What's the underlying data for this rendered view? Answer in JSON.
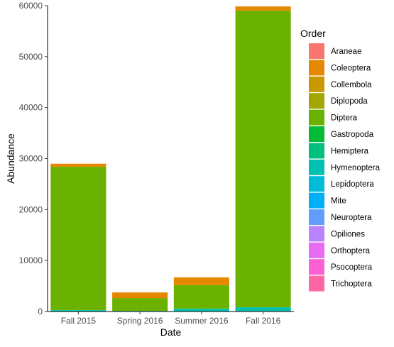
{
  "chart_data": {
    "type": "bar",
    "stacked": true,
    "xlabel": "Date",
    "ylabel": "Abundance",
    "categories": [
      "Fall 2015",
      "Spring 2016",
      "Summer 2016",
      "Fall 2016"
    ],
    "ylim": [
      0,
      60000
    ],
    "yticks": [
      0,
      10000,
      20000,
      30000,
      40000,
      50000,
      60000
    ],
    "grid": false,
    "legend": {
      "title": "Order",
      "position": "right"
    },
    "series": [
      {
        "name": "Araneae",
        "color": "#F8766D",
        "values": [
          10,
          10,
          10,
          20
        ]
      },
      {
        "name": "Coleoptera",
        "color": "#E58700",
        "values": [
          600,
          1100,
          1500,
          800
        ]
      },
      {
        "name": "Collembola",
        "color": "#C99800",
        "values": [
          5,
          5,
          5,
          5
        ]
      },
      {
        "name": "Diplopoda",
        "color": "#A3A500",
        "values": [
          2,
          2,
          2,
          2
        ]
      },
      {
        "name": "Diptera",
        "color": "#6BB100",
        "values": [
          28100,
          2500,
          4600,
          58200
        ]
      },
      {
        "name": "Gastropoda",
        "color": "#00BA38",
        "values": [
          2,
          2,
          2,
          2
        ]
      },
      {
        "name": "Hemiptera",
        "color": "#00BF7D",
        "values": [
          30,
          20,
          30,
          50
        ]
      },
      {
        "name": "Hymenoptera",
        "color": "#00C0AF",
        "values": [
          200,
          80,
          500,
          700
        ]
      },
      {
        "name": "Lepidoptera",
        "color": "#00BCD8",
        "values": [
          30,
          10,
          30,
          60
        ]
      },
      {
        "name": "Mite",
        "color": "#00B0F6",
        "values": [
          10,
          5,
          5,
          10
        ]
      },
      {
        "name": "Neuroptera",
        "color": "#619CFF",
        "values": [
          2,
          2,
          2,
          2
        ]
      },
      {
        "name": "Opiliones",
        "color": "#B983FF",
        "values": [
          2,
          2,
          2,
          2
        ]
      },
      {
        "name": "Orthoptera",
        "color": "#E76BF3",
        "values": [
          5,
          5,
          5,
          5
        ]
      },
      {
        "name": "Psocoptera",
        "color": "#FD61D1",
        "values": [
          2,
          2,
          2,
          2
        ]
      },
      {
        "name": "Trichoptera",
        "color": "#FF67A4",
        "values": [
          5,
          5,
          5,
          5
        ]
      }
    ]
  }
}
